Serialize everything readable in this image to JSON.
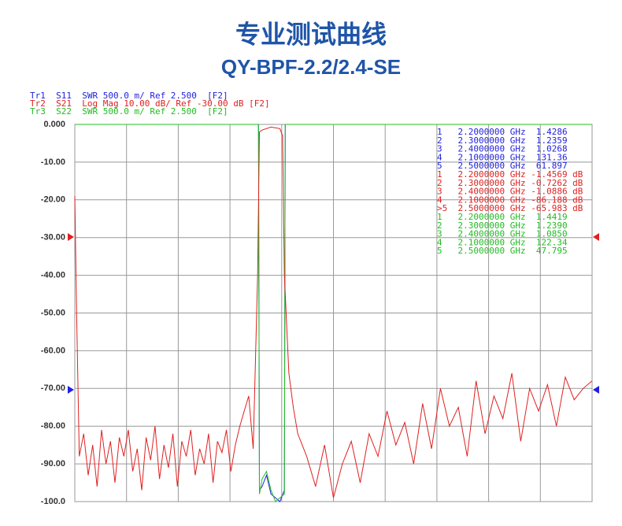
{
  "chart_data": {
    "type": "line",
    "title": "专业测试曲线",
    "subtitle": "QY-BPF-2.2/2.4-SE",
    "trace_headers": [
      {
        "text": "Tr1  S11  SWR 500.0 m/ Ref 2.500  [F2]",
        "color": "#2222dd"
      },
      {
        "text": "Tr2  S21  Log Mag 10.00 dB/ Ref -30.00 dB [F2]",
        "color": "#dd2222"
      },
      {
        "text": "Tr3  S22  SWR 500.0 m/ Ref 2.500  [F2]",
        "color": "#22bb22"
      }
    ],
    "xlim": [
      0.1,
      5.9
    ],
    "xticks": [
      0.1,
      0.68,
      1.26,
      1.84,
      2.42,
      3.0,
      3.58,
      4.16,
      4.74,
      5.32,
      5.9
    ],
    "ylim": [
      -100,
      0
    ],
    "yticks": [
      {
        "value": 0,
        "label": "0.000"
      },
      {
        "value": -10,
        "label": "-10.00"
      },
      {
        "value": -20,
        "label": "-20.00"
      },
      {
        "value": -30,
        "label": "-30.00"
      },
      {
        "value": -40,
        "label": "-40.00"
      },
      {
        "value": -50,
        "label": "-50.00"
      },
      {
        "value": -60,
        "label": "-60.00"
      },
      {
        "value": -70,
        "label": "-70.00"
      },
      {
        "value": -80,
        "label": "-80.00"
      },
      {
        "value": -90,
        "label": "-90.00"
      },
      {
        "value": -100,
        "label": "-100.0"
      }
    ],
    "grid": true,
    "series": [
      {
        "name": "S21",
        "color": "#e02020",
        "x": [
          0.1,
          0.12,
          0.15,
          0.2,
          0.25,
          0.3,
          0.35,
          0.4,
          0.45,
          0.5,
          0.55,
          0.6,
          0.65,
          0.7,
          0.75,
          0.8,
          0.85,
          0.9,
          0.95,
          1.0,
          1.05,
          1.1,
          1.15,
          1.2,
          1.25,
          1.3,
          1.35,
          1.4,
          1.45,
          1.5,
          1.55,
          1.6,
          1.65,
          1.7,
          1.75,
          1.8,
          1.85,
          1.9,
          1.95,
          2.0,
          2.05,
          2.1,
          2.15,
          2.17,
          2.2,
          2.3,
          2.4,
          2.43,
          2.45,
          2.5,
          2.55,
          2.6,
          2.7,
          2.8,
          2.9,
          3.0,
          3.1,
          3.2,
          3.3,
          3.4,
          3.5,
          3.6,
          3.7,
          3.8,
          3.9,
          4.0,
          4.1,
          4.2,
          4.3,
          4.4,
          4.5,
          4.6,
          4.7,
          4.8,
          4.9,
          5.0,
          5.1,
          5.2,
          5.3,
          5.4,
          5.5,
          5.6,
          5.7,
          5.8,
          5.9
        ],
        "values": [
          -19,
          -50,
          -88,
          -82,
          -93,
          -85,
          -96,
          -81,
          -90,
          -84,
          -95,
          -83,
          -88,
          -81,
          -92,
          -86,
          -97,
          -83,
          -89,
          -80,
          -94,
          -85,
          -91,
          -82,
          -96,
          -84,
          -88,
          -81,
          -93,
          -86,
          -90,
          -82,
          -95,
          -84,
          -87,
          -81,
          -92,
          -85,
          -80,
          -76,
          -72,
          -86,
          -40,
          -2,
          -1.5,
          -0.7,
          -1.1,
          -3,
          -40,
          -66,
          -75,
          -82,
          -88,
          -96,
          -85,
          -99,
          -90,
          -84,
          -95,
          -82,
          -88,
          -76,
          -85,
          -79,
          -90,
          -74,
          -86,
          -70,
          -80,
          -75,
          -88,
          -68,
          -82,
          -72,
          -78,
          -66,
          -84,
          -70,
          -76,
          -69,
          -80,
          -67,
          -73,
          -70,
          -68
        ]
      },
      {
        "name": "S11",
        "color": "#2020e0",
        "x": [
          0.1,
          2.16,
          2.17,
          2.2,
          2.25,
          2.3,
          2.35,
          2.4,
          2.45,
          2.46,
          5.9
        ],
        "values": [
          0,
          0,
          -97,
          -96,
          -93,
          -98,
          -99,
          -100,
          -97,
          0,
          0
        ]
      },
      {
        "name": "S22",
        "color": "#20c020",
        "x": [
          0.1,
          2.16,
          2.17,
          2.2,
          2.25,
          2.3,
          2.35,
          2.4,
          2.45,
          2.46,
          5.9
        ],
        "values": [
          0,
          0,
          -98,
          -94,
          -92,
          -97,
          -100,
          -99,
          -98,
          0,
          0
        ]
      }
    ],
    "marker_table": [
      {
        "text": "1   2.2000000 GHz  1.4286",
        "color": "#2222dd"
      },
      {
        "text": "2   2.3000000 GHz  1.2359",
        "color": "#2222dd"
      },
      {
        "text": "3   2.4000000 GHz  1.0268",
        "color": "#2222dd"
      },
      {
        "text": "4   2.1000000 GHz  131.36",
        "color": "#2222dd"
      },
      {
        "text": "5   2.5000000 GHz  61.897",
        "color": "#2222dd"
      },
      {
        "text": "1   2.2000000 GHz -1.4569 dB",
        "color": "#dd2222"
      },
      {
        "text": "2   2.3000000 GHz -0.7262 dB",
        "color": "#dd2222"
      },
      {
        "text": "3   2.4000000 GHz -1.0886 dB",
        "color": "#dd2222"
      },
      {
        "text": "4   2.1000000 GHz -86.188 dB",
        "color": "#dd2222"
      },
      {
        "text": ">5  2.5000000 GHz -65.983 dB",
        "color": "#dd2222"
      },
      {
        "text": "1   2.2000000 GHz  1.4419",
        "color": "#22bb22"
      },
      {
        "text": "2   2.3000000 GHz  1.2390",
        "color": "#22bb22"
      },
      {
        "text": "3   2.4000000 GHz  1.0850",
        "color": "#22bb22"
      },
      {
        "text": "4   2.1000000 GHz  122.34",
        "color": "#22bb22"
      },
      {
        "text": "5   2.5000000 GHz  47.795",
        "color": "#22bb22"
      }
    ]
  }
}
